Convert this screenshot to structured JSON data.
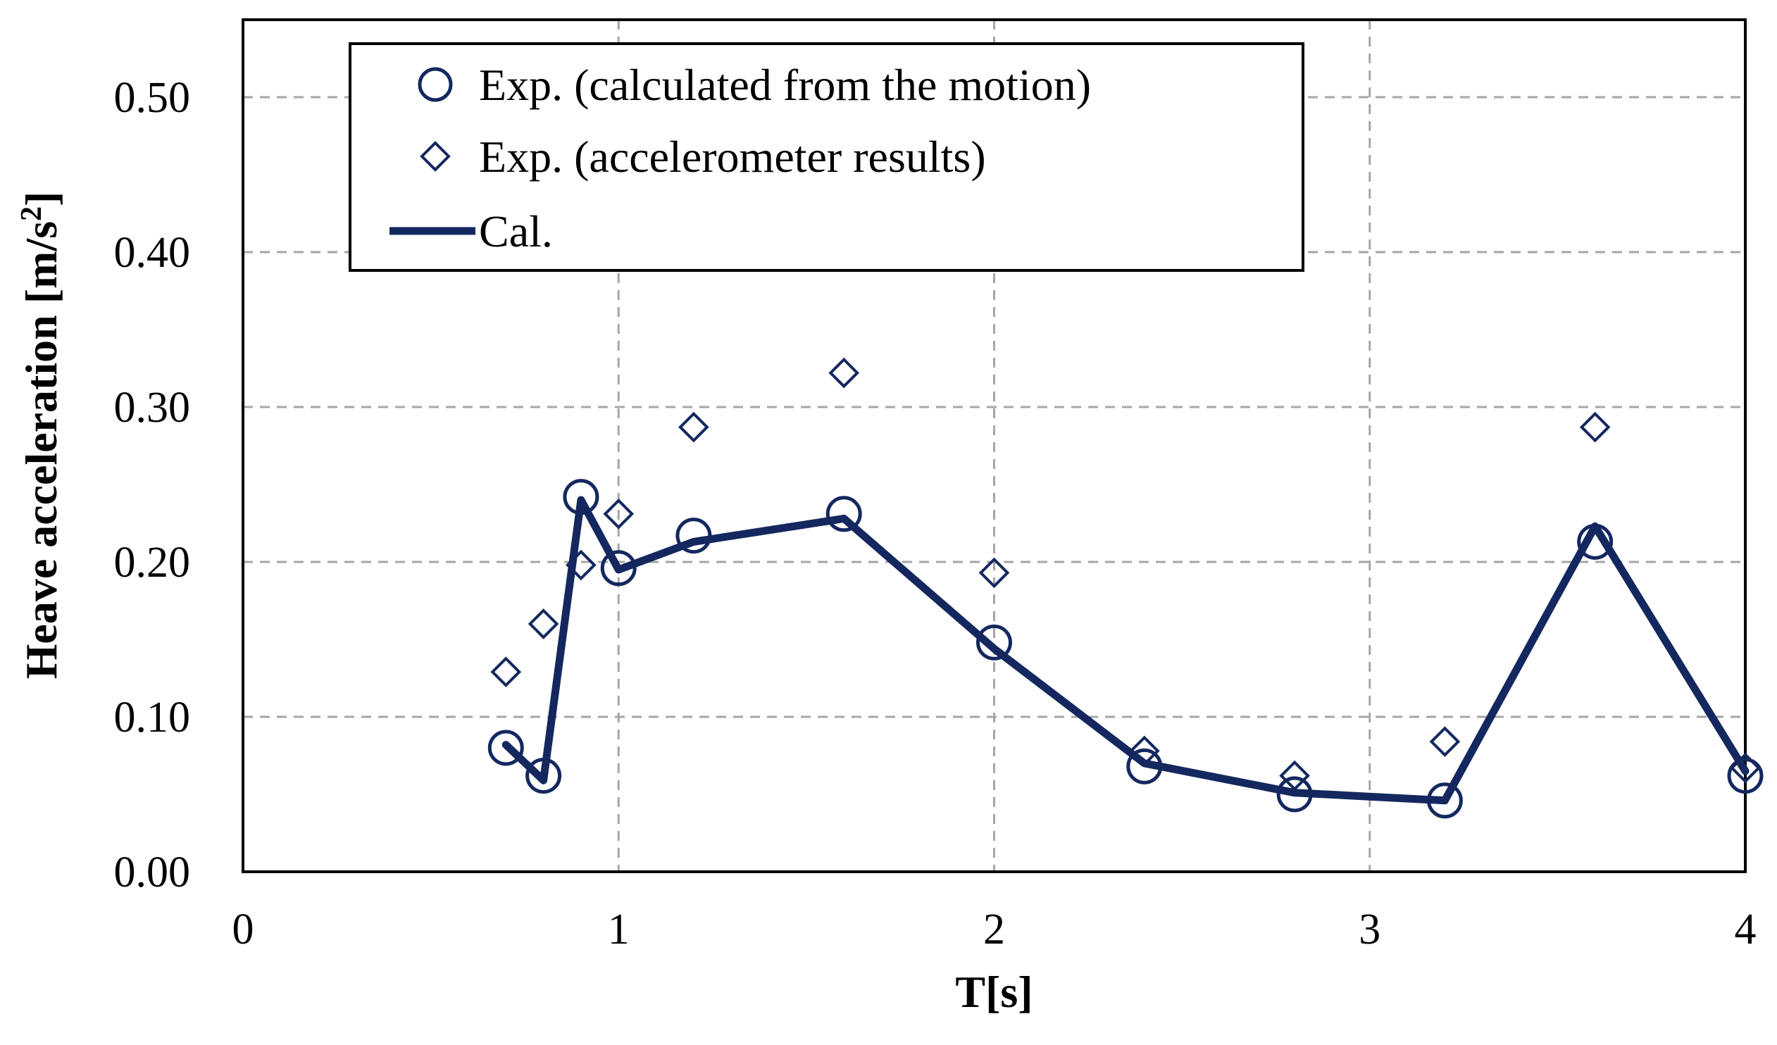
{
  "colors": {
    "series": "#14285f",
    "grid": "#a6a6a6",
    "axis": "#000000"
  },
  "chart_data": {
    "type": "line",
    "title": "",
    "xlabel": "T[s]",
    "ylabel_main": "Heave acceleration  [m/s",
    "ylabel_sup": "2",
    "ylabel_end": "]",
    "xlim": [
      0,
      4
    ],
    "ylim": [
      0,
      0.55
    ],
    "x_ticks": [
      0,
      1,
      2,
      3,
      4
    ],
    "x_tick_labels": [
      "0",
      "1",
      "2",
      "3",
      "4"
    ],
    "y_ticks": [
      0.0,
      0.1,
      0.2,
      0.3,
      0.4,
      0.5
    ],
    "y_tick_labels": [
      "0.00",
      "0.10",
      "0.20",
      "0.30",
      "0.40",
      "0.50"
    ],
    "grid": true,
    "legend_position": "top-left",
    "series": [
      {
        "name": "Exp. (calculated from the motion)",
        "marker": "circle",
        "x": [
          0.7,
          0.8,
          0.9,
          1.0,
          1.2,
          1.6,
          2.0,
          2.4,
          2.8,
          3.2,
          3.6,
          4.0
        ],
        "values": [
          0.08,
          0.062,
          0.242,
          0.196,
          0.217,
          0.231,
          0.148,
          0.068,
          0.05,
          0.046,
          0.213,
          0.062
        ]
      },
      {
        "name": "Exp. (accelerometer results)",
        "marker": "diamond",
        "x": [
          0.7,
          0.8,
          0.9,
          1.0,
          1.2,
          1.6,
          2.0,
          2.4,
          2.8,
          3.2,
          3.6,
          4.0
        ],
        "values": [
          0.129,
          0.16,
          0.198,
          0.231,
          0.287,
          0.322,
          0.193,
          0.078,
          0.062,
          0.084,
          0.287,
          0.067
        ]
      },
      {
        "name": "Cal.",
        "marker": "line",
        "x": [
          0.7,
          0.8,
          0.9,
          1.0,
          1.2,
          1.6,
          2.0,
          2.4,
          2.8,
          3.2,
          3.6,
          4.0
        ],
        "values": [
          0.082,
          0.059,
          0.24,
          0.195,
          0.213,
          0.228,
          0.144,
          0.07,
          0.051,
          0.046,
          0.223,
          0.065
        ]
      }
    ]
  }
}
